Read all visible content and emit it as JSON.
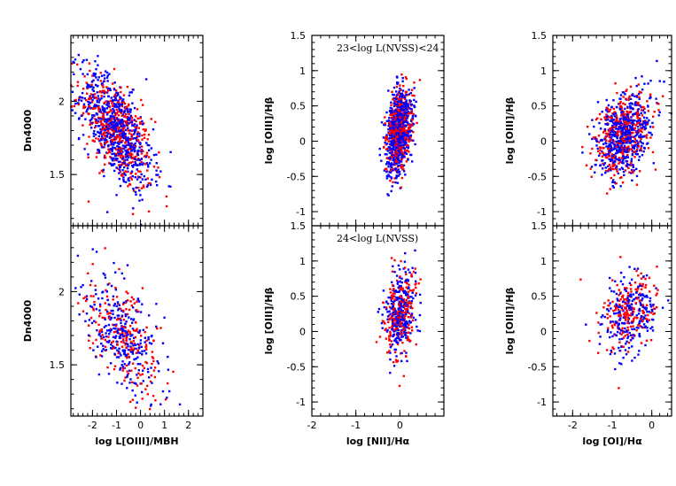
{
  "colors": {
    "red": "#ff0000",
    "blue": "#0000ff",
    "frame": "#000000"
  },
  "chart_data": [
    {
      "id": "p_d4000_top",
      "type": "scatter",
      "xlim": [
        -2.9,
        2.6
      ],
      "ylim": [
        1.15,
        2.45
      ],
      "xticks": [
        -2,
        -1,
        0,
        1,
        2
      ],
      "yticks": [
        1.5,
        2
      ],
      "xticklabels": [],
      "yticklabels": [
        "1.5",
        "2"
      ],
      "xlabel": "",
      "ylabel": "Dn4000",
      "annotation": "",
      "cloud": {
        "cx": -1.0,
        "cy": 1.8,
        "sx": 0.75,
        "sy": 0.2,
        "rho": -0.6,
        "n_red": 450,
        "n_blue": 650
      }
    },
    {
      "id": "p_bpt_nii_top",
      "type": "scatter",
      "xlim": [
        -2.0,
        1.0
      ],
      "ylim": [
        -1.2,
        1.5
      ],
      "xticks": [
        -2,
        -1,
        0
      ],
      "yticks": [
        -1,
        -0.5,
        0,
        0.5,
        1,
        1.5
      ],
      "xticklabels": [],
      "yticklabels": [
        "-1",
        "-0.5",
        "0",
        "0.5",
        "1",
        "1.5"
      ],
      "xlabel": "",
      "ylabel": "log [OIII]/Hβ",
      "annotation": "23<log L(NVSS)<24",
      "cloud": {
        "cx": -0.02,
        "cy": 0.15,
        "sx": 0.14,
        "sy": 0.3,
        "rho": 0.3,
        "n_red": 420,
        "n_blue": 650
      }
    },
    {
      "id": "p_bpt_oi_top",
      "type": "scatter",
      "xlim": [
        -2.5,
        0.5
      ],
      "ylim": [
        -1.2,
        1.5
      ],
      "xticks": [
        -2,
        -1,
        0
      ],
      "yticks": [
        -1,
        -0.5,
        0,
        0.5,
        1,
        1.5
      ],
      "xticklabels": [],
      "yticklabels": [
        "-1",
        "-0.5",
        "0",
        "0.5",
        "1",
        "1.5"
      ],
      "xlabel": "",
      "ylabel": "log [OIII]/Hβ",
      "annotation": "",
      "cloud": {
        "cx": -0.7,
        "cy": 0.1,
        "sx": 0.35,
        "sy": 0.3,
        "rho": 0.35,
        "n_red": 380,
        "n_blue": 520
      }
    },
    {
      "id": "p_d4000_bottom",
      "type": "scatter",
      "xlim": [
        -2.9,
        2.6
      ],
      "ylim": [
        1.15,
        2.45
      ],
      "xticks": [
        -2,
        -1,
        0,
        1,
        2
      ],
      "yticks": [
        1.5,
        2
      ],
      "xticklabels": [
        "-2",
        "-1",
        "0",
        "1",
        "2"
      ],
      "yticklabels": [
        "1.5",
        "2"
      ],
      "xlabel": "log L[OIII]/MBH",
      "ylabel": "Dn4000",
      "annotation": "",
      "cloud": {
        "cx": -0.7,
        "cy": 1.7,
        "sx": 0.8,
        "sy": 0.2,
        "rho": -0.55,
        "n_red": 220,
        "n_blue": 280
      }
    },
    {
      "id": "p_bpt_nii_bottom",
      "type": "scatter",
      "xlim": [
        -2.0,
        1.0
      ],
      "ylim": [
        -1.2,
        1.5
      ],
      "xticks": [
        -2,
        -1,
        0
      ],
      "yticks": [
        -1,
        -0.5,
        0,
        0.5,
        1,
        1.5
      ],
      "xticklabels": [
        "-2",
        "-1",
        "0"
      ],
      "yticklabels": [
        "-1",
        "-0.5",
        "0",
        "0.5",
        "1",
        "1.5"
      ],
      "xlabel": "log [NII]/Hα",
      "ylabel": "log [OIII]/Hβ",
      "annotation": "24<log L(NVSS)",
      "cloud": {
        "cx": 0.0,
        "cy": 0.25,
        "sx": 0.17,
        "sy": 0.3,
        "rho": 0.25,
        "n_red": 230,
        "n_blue": 280
      }
    },
    {
      "id": "p_bpt_oi_bottom",
      "type": "scatter",
      "xlim": [
        -2.5,
        0.5
      ],
      "ylim": [
        -1.2,
        1.5
      ],
      "xticks": [
        -2,
        -1,
        0
      ],
      "yticks": [
        -1,
        -0.5,
        0,
        0.5,
        1,
        1.5
      ],
      "xticklabels": [
        "-2",
        "-1",
        "0"
      ],
      "yticklabels": [
        "-1",
        "-0.5",
        "0",
        "0.5",
        "1",
        "1.5"
      ],
      "xlabel": "log [OI]/Hα",
      "ylabel": "log [OIII]/Hβ",
      "annotation": "",
      "cloud": {
        "cx": -0.6,
        "cy": 0.25,
        "sx": 0.35,
        "sy": 0.28,
        "rho": 0.25,
        "n_red": 200,
        "n_blue": 230
      }
    }
  ]
}
